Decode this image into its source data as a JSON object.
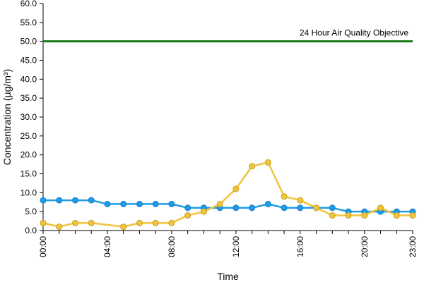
{
  "chart_data": {
    "type": "line",
    "title": "",
    "xlabel": "Time",
    "ylabel": "Concentration (µg/m³)",
    "ylim": [
      0,
      60
    ],
    "y_ticks": [
      "0.0",
      "5.0",
      "10.0",
      "15.0",
      "20.0",
      "25.0",
      "30.0",
      "35.0",
      "40.0",
      "45.0",
      "50.0",
      "55.0",
      "60.0"
    ],
    "x_range": [
      0,
      23
    ],
    "x_tick_hours": [
      0,
      4,
      8,
      12,
      16,
      20,
      23
    ],
    "x_tick_labels": [
      "00:00",
      "04:00",
      "08:00",
      "12:00",
      "16:00",
      "20:00",
      "23:00"
    ],
    "grid": false,
    "legend": "none",
    "objective": {
      "value": 50,
      "label": "24 Hour Air Quality Objective",
      "color": "#1a7a1a"
    },
    "series": [
      {
        "color": "#1e9be8",
        "x": [
          0,
          1,
          2,
          3,
          4,
          5,
          6,
          7,
          8,
          9,
          10,
          11,
          12,
          13,
          14,
          15,
          16,
          17,
          18,
          19,
          20,
          21,
          22,
          23
        ],
        "values": [
          8,
          8,
          8,
          8,
          7,
          7,
          7,
          7,
          7,
          6,
          6,
          6,
          6,
          6,
          7,
          6,
          6,
          6,
          6,
          5,
          5,
          5,
          5,
          5
        ]
      },
      {
        "color": "#f0c43c",
        "x": [
          0,
          1,
          2,
          3,
          5,
          6,
          7,
          8,
          9,
          10,
          11,
          12,
          13,
          14,
          15,
          16,
          17,
          18,
          19,
          20,
          21,
          22,
          23
        ],
        "values": [
          2,
          1,
          2,
          2,
          1,
          2,
          2,
          2,
          4,
          5,
          7,
          11,
          17,
          18,
          9,
          8,
          6,
          4,
          4,
          4,
          6,
          4,
          4
        ]
      }
    ]
  }
}
